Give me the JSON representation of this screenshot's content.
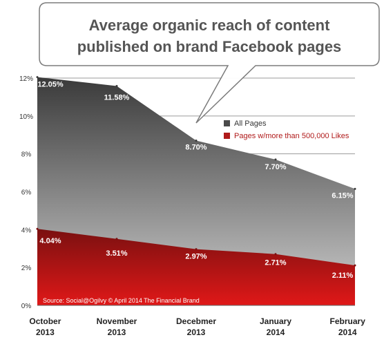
{
  "chart_data": {
    "type": "area",
    "title": "Average organic reach of content published on brand Facebook pages",
    "title_lines": [
      "Average organic reach of content",
      "published on brand Facebook pages"
    ],
    "categories": [
      "October 2013",
      "November 2013",
      "Decebmer 2013",
      "January 2014",
      "February 2014"
    ],
    "category_lines": [
      [
        "October",
        "2013"
      ],
      [
        "November",
        "2013"
      ],
      [
        "Decebmer",
        "2013"
      ],
      [
        "January",
        "2014"
      ],
      [
        "February",
        "2014"
      ]
    ],
    "y_ticks": [
      "0%",
      "2%",
      "4%",
      "6%",
      "8%",
      "10%",
      "12%"
    ],
    "ylim": [
      0,
      12
    ],
    "grid": true,
    "legend_position": "middle-right",
    "series": [
      {
        "name": "All Pages",
        "values": [
          12.05,
          11.58,
          8.7,
          7.7,
          6.15
        ],
        "data_labels": [
          "12.05%",
          "11.58%",
          "8.70%",
          "7.70%",
          "6.15%"
        ],
        "color": "#4a4a4a"
      },
      {
        "name": "Pages w/more than 500,000 Likes",
        "values": [
          4.04,
          3.51,
          2.97,
          2.71,
          2.11
        ],
        "data_labels": [
          "4.04%",
          "3.51%",
          "2.97%",
          "2.71%",
          "2.11%"
        ],
        "color": "#b01a1a"
      }
    ],
    "source": "Source: Social@Ogilvy © April 2014 The Financial Brand",
    "legend_label_colors": [
      "#333333",
      "#b01a1a"
    ]
  }
}
